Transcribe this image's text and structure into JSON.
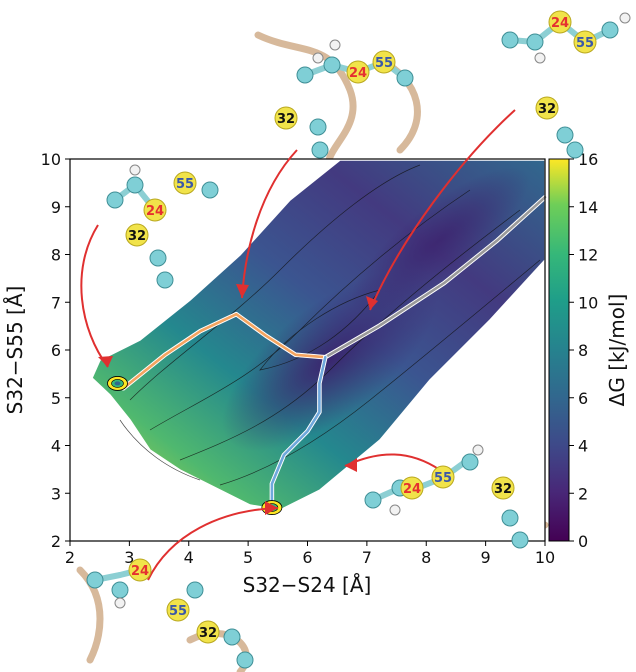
{
  "chart_data": {
    "type": "heatmap",
    "xlabel": "S32−S24 [Å]",
    "ylabel": "S32−S55 [Å]",
    "xlim": [
      2,
      10
    ],
    "ylim": [
      2,
      10
    ],
    "xticks": [
      "2",
      "3",
      "4",
      "5",
      "6",
      "7",
      "8",
      "9",
      "10"
    ],
    "yticks": [
      "2",
      "3",
      "4",
      "5",
      "6",
      "7",
      "8",
      "9",
      "10"
    ],
    "colorbar": {
      "label": "ΔG [kJ/mol]",
      "range": [
        0,
        16
      ],
      "ticks": [
        "0",
        "2",
        "4",
        "6",
        "8",
        "10",
        "12",
        "14",
        "16"
      ],
      "colormap": "viridis"
    },
    "minima": [
      {
        "x": 2.8,
        "y": 5.3
      },
      {
        "x": 5.4,
        "y": 2.7
      }
    ],
    "paths": [
      {
        "color": "#f4a460",
        "points": [
          [
            2.9,
            5.2
          ],
          [
            3.6,
            5.9
          ],
          [
            4.2,
            6.4
          ],
          [
            4.8,
            6.75
          ],
          [
            5.3,
            6.3
          ],
          [
            5.8,
            5.9
          ],
          [
            6.3,
            5.85
          ]
        ]
      },
      {
        "color": "#9a9a9a",
        "points": [
          [
            6.3,
            5.85
          ],
          [
            7.2,
            6.5
          ],
          [
            8.3,
            7.4
          ],
          [
            9.2,
            8.3
          ],
          [
            10.0,
            9.2
          ]
        ]
      },
      {
        "color": "#6fa8dc",
        "points": [
          [
            6.3,
            5.85
          ],
          [
            6.2,
            5.3
          ],
          [
            6.2,
            4.7
          ],
          [
            6.0,
            4.3
          ],
          [
            5.6,
            3.8
          ],
          [
            5.4,
            3.2
          ],
          [
            5.4,
            2.7
          ]
        ]
      },
      {
        "color": "#e8a040",
        "points": [
          [
            2.8,
            5.3
          ],
          [
            2.9,
            5.2
          ]
        ]
      }
    ],
    "atom_labels": [
      "24",
      "55",
      "32"
    ]
  }
}
